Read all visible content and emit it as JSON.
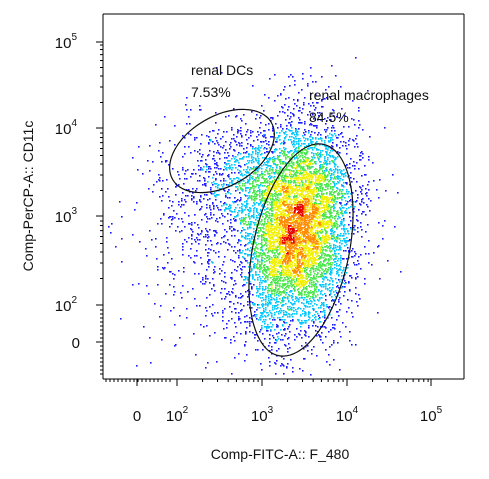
{
  "chart_data": {
    "type": "scatter",
    "subtype": "flow-cytometry-density-dot-plot",
    "xlabel": "Comp-FITC-A:: F_480",
    "ylabel": "Comp-PerCP-A:: CD11c",
    "x_scale": "biexponential",
    "y_scale": "biexponential",
    "x_ticks": [
      {
        "base": "0",
        "exp": ""
      },
      {
        "base": "10",
        "exp": "2"
      },
      {
        "base": "10",
        "exp": "3"
      },
      {
        "base": "10",
        "exp": "4"
      },
      {
        "base": "10",
        "exp": "5"
      }
    ],
    "y_ticks": [
      {
        "base": "0",
        "exp": ""
      },
      {
        "base": "10",
        "exp": "2"
      },
      {
        "base": "10",
        "exp": "3"
      },
      {
        "base": "10",
        "exp": "4"
      },
      {
        "base": "10",
        "exp": "5"
      }
    ],
    "color_scale": [
      "#1a1aff",
      "#00c8ff",
      "#4be64b",
      "#f0f000",
      "#ff8c00",
      "#e60000"
    ],
    "populations": [
      {
        "center_log": [
          3.42,
          2.85
        ],
        "spread_log": [
          0.32,
          0.58
        ],
        "events": 6000
      },
      {
        "center_log": [
          2.85,
          3.45
        ],
        "spread_log": [
          0.48,
          0.35
        ],
        "events": 1000
      },
      {
        "center_log": [
          2.5,
          2.7
        ],
        "spread_log": [
          0.55,
          0.6
        ],
        "events": 600
      }
    ],
    "gates": [
      {
        "name": "renal DCs",
        "percent": "7.53%",
        "shape": "ellipse"
      },
      {
        "name": "renal macrophages",
        "percent": "84.5%",
        "shape": "ellipse"
      }
    ],
    "grid": false
  }
}
